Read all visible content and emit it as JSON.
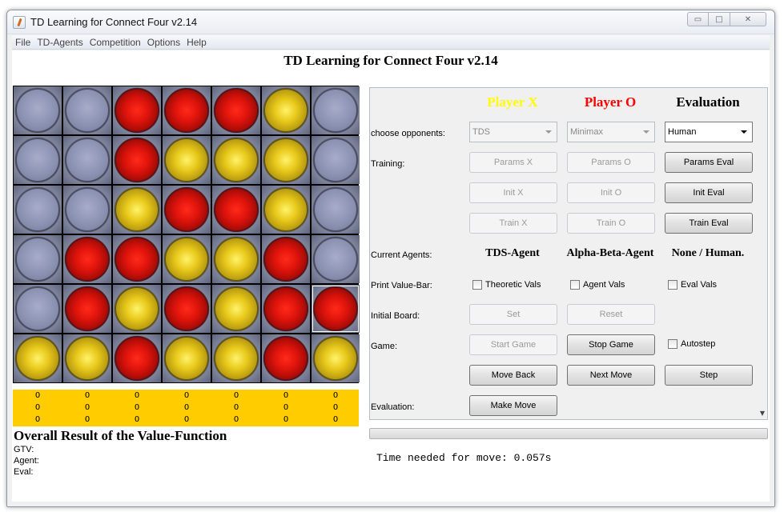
{
  "window": {
    "title": "TD Learning for Connect Four v2.14",
    "minimize_glyph": "▭",
    "maximize_glyph": "□",
    "close_glyph": "✕"
  },
  "menu": [
    "File",
    "TD-Agents",
    "Competition",
    "Options",
    "Help"
  ],
  "heading": "TD Learning for Connect Four v2.14",
  "board": {
    "rows": [
      [
        "empty",
        "empty",
        "red",
        "red",
        "red",
        "yellow",
        "empty"
      ],
      [
        "empty",
        "empty",
        "red",
        "yellow",
        "yellow",
        "yellow",
        "empty"
      ],
      [
        "empty",
        "empty",
        "yellow",
        "red",
        "red",
        "yellow",
        "empty"
      ],
      [
        "empty",
        "red",
        "red",
        "yellow",
        "yellow",
        "red",
        "empty"
      ],
      [
        "empty",
        "red",
        "yellow",
        "red",
        "yellow",
        "red",
        "red"
      ],
      [
        "yellow",
        "yellow",
        "red",
        "yellow",
        "yellow",
        "red",
        "yellow"
      ]
    ],
    "colors": {
      "red": "#e0140c",
      "yellow": "#e8c81a",
      "empty": "#8a90b0"
    }
  },
  "value_bar": {
    "background": "#ffcc00",
    "columns": [
      [
        "0",
        "0",
        "0"
      ],
      [
        "0",
        "0",
        "0"
      ],
      [
        "0",
        "0",
        "0"
      ],
      [
        "0",
        "0",
        "0"
      ],
      [
        "0",
        "0",
        "0"
      ],
      [
        "0",
        "0",
        "0"
      ],
      [
        "0",
        "0",
        "0"
      ]
    ]
  },
  "result": {
    "title": "Overall Result of the Value-Function",
    "gtv_label": "GTV:",
    "agent_label": "Agent:",
    "eval_label": "Eval:"
  },
  "panel": {
    "headers": {
      "player_x": "Player X",
      "player_o": "Player O",
      "evaluation": "Evaluation",
      "player_x_color": "#ffff00",
      "player_o_color": "#ff0000"
    },
    "labels": {
      "choose_opponents": "choose opponents:",
      "training": "Training:",
      "current_agents": "Current Agents:",
      "print_value_bar": "Print Value-Bar:",
      "initial_board": "Initial Board:",
      "game": "Game:",
      "evaluation": "Evaluation:"
    },
    "opponents": {
      "x": "TDS",
      "o": "Minimax",
      "eval": "Human"
    },
    "buttons": {
      "params_x": "Params X",
      "params_o": "Params O",
      "params_eval": "Params Eval",
      "init_x": "Init X",
      "init_o": "Init O",
      "init_eval": "Init Eval",
      "train_x": "Train X",
      "train_o": "Train O",
      "train_eval": "Train Eval",
      "set": "Set",
      "reset": "Reset",
      "start_game": "Start Game",
      "stop_game": "Stop Game",
      "move_back": "Move Back",
      "next_move": "Next Move",
      "step": "Step",
      "make_move": "Make Move"
    },
    "agents": {
      "x": "TDS-Agent",
      "o": "Alpha-Beta-Agent",
      "eval": "None / Human."
    },
    "checkboxes": {
      "theoretic_vals": "Theoretic Vals",
      "agent_vals": "Agent Vals",
      "eval_vals": "Eval Vals",
      "autostep": "Autostep"
    },
    "scroll_glyph": "▼"
  },
  "status": {
    "text": "Time needed for move: 0.057s"
  }
}
